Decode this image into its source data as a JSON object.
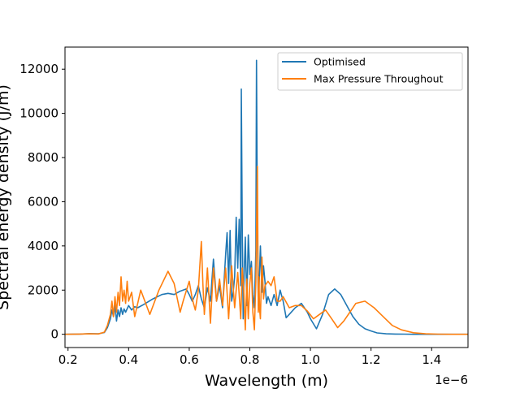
{
  "chart_data": {
    "type": "line",
    "title": "",
    "xlabel": "Wavelength (m)",
    "ylabel": "Spectral energy density (J/m)",
    "x_offset_label": "1e−6",
    "xlim": [
      0.19,
      1.52
    ],
    "ylim": [
      -600,
      13000
    ],
    "x_ticks": [
      0.2,
      0.4,
      0.6,
      0.8,
      1.0,
      1.2,
      1.4
    ],
    "x_tick_labels": [
      "0.2",
      "0.4",
      "0.6",
      "0.8",
      "1.0",
      "1.2",
      "1.4"
    ],
    "y_ticks": [
      0,
      2000,
      4000,
      6000,
      8000,
      10000,
      12000
    ],
    "y_tick_labels": [
      "0",
      "2000",
      "4000",
      "6000",
      "8000",
      "10000",
      "12000"
    ],
    "grid": false,
    "legend_position": "top-right",
    "series": [
      {
        "name": "Optimised",
        "color": "#1f77b4",
        "x": [
          0.19,
          0.24,
          0.27,
          0.3,
          0.32,
          0.33,
          0.34,
          0.345,
          0.35,
          0.355,
          0.36,
          0.365,
          0.37,
          0.375,
          0.38,
          0.385,
          0.39,
          0.4,
          0.41,
          0.42,
          0.43,
          0.45,
          0.48,
          0.51,
          0.53,
          0.55,
          0.57,
          0.59,
          0.6,
          0.61,
          0.62,
          0.63,
          0.64,
          0.65,
          0.66,
          0.67,
          0.68,
          0.69,
          0.7,
          0.71,
          0.72,
          0.725,
          0.73,
          0.735,
          0.74,
          0.745,
          0.75,
          0.755,
          0.76,
          0.765,
          0.77,
          0.772,
          0.775,
          0.778,
          0.78,
          0.785,
          0.79,
          0.795,
          0.8,
          0.805,
          0.81,
          0.815,
          0.82,
          0.822,
          0.825,
          0.828,
          0.83,
          0.835,
          0.84,
          0.845,
          0.85,
          0.855,
          0.86,
          0.87,
          0.88,
          0.89,
          0.9,
          0.91,
          0.92,
          0.93,
          0.95,
          0.97,
          0.99,
          1.0,
          1.02,
          1.04,
          1.06,
          1.08,
          1.1,
          1.12,
          1.14,
          1.16,
          1.18,
          1.2,
          1.22,
          1.25,
          1.28,
          1.31,
          1.35,
          1.4,
          1.45,
          1.52
        ],
        "y": [
          0,
          10,
          30,
          20,
          80,
          300,
          700,
          1100,
          800,
          1300,
          600,
          1100,
          800,
          1200,
          900,
          1150,
          1000,
          1300,
          1100,
          1250,
          1200,
          1350,
          1600,
          1800,
          1850,
          1800,
          1950,
          2050,
          1800,
          1500,
          1800,
          2200,
          1600,
          1200,
          2100,
          1500,
          3400,
          1500,
          2200,
          1200,
          3600,
          4600,
          2300,
          4700,
          1500,
          1900,
          2600,
          5300,
          3000,
          5200,
          2200,
          11100,
          4700,
          700,
          2100,
          4400,
          1300,
          4500,
          2700,
          3300,
          1800,
          1200,
          3800,
          12400,
          4700,
          1300,
          2000,
          4000,
          1900,
          3100,
          2400,
          1400,
          1700,
          1300,
          1800,
          1300,
          2000,
          1500,
          750,
          900,
          1200,
          1400,
          1000,
          700,
          250,
          900,
          1800,
          2050,
          1800,
          1300,
          800,
          450,
          250,
          150,
          60,
          20,
          10,
          5,
          0,
          0,
          0,
          0
        ]
      },
      {
        "name": "Max Pressure Throughout",
        "color": "#ff7f0e",
        "x": [
          0.19,
          0.24,
          0.27,
          0.3,
          0.32,
          0.33,
          0.34,
          0.345,
          0.35,
          0.355,
          0.36,
          0.365,
          0.37,
          0.375,
          0.38,
          0.385,
          0.39,
          0.395,
          0.4,
          0.41,
          0.42,
          0.44,
          0.47,
          0.5,
          0.53,
          0.55,
          0.57,
          0.58,
          0.6,
          0.61,
          0.62,
          0.63,
          0.64,
          0.645,
          0.65,
          0.66,
          0.67,
          0.68,
          0.69,
          0.7,
          0.71,
          0.72,
          0.73,
          0.74,
          0.75,
          0.76,
          0.77,
          0.775,
          0.78,
          0.785,
          0.79,
          0.795,
          0.8,
          0.805,
          0.81,
          0.815,
          0.82,
          0.825,
          0.828,
          0.83,
          0.832,
          0.835,
          0.84,
          0.845,
          0.85,
          0.86,
          0.87,
          0.88,
          0.89,
          0.9,
          0.91,
          0.93,
          0.95,
          0.97,
          0.99,
          1.01,
          1.03,
          1.05,
          1.07,
          1.09,
          1.11,
          1.13,
          1.15,
          1.18,
          1.21,
          1.24,
          1.27,
          1.3,
          1.34,
          1.38,
          1.42,
          1.47,
          1.52
        ],
        "y": [
          0,
          10,
          20,
          15,
          100,
          400,
          900,
          1500,
          800,
          1700,
          1000,
          1900,
          1300,
          2600,
          1500,
          2000,
          1400,
          2400,
          1500,
          1900,
          800,
          2000,
          900,
          2000,
          2850,
          2300,
          1000,
          1500,
          2400,
          1600,
          1100,
          2000,
          4200,
          2300,
          900,
          3000,
          500,
          3000,
          1500,
          2500,
          1300,
          3000,
          700,
          3100,
          1200,
          2800,
          700,
          3000,
          2000,
          200,
          2500,
          700,
          2300,
          3000,
          1000,
          200,
          2400,
          7600,
          1000,
          2600,
          1200,
          700,
          3500,
          1600,
          2200,
          2400,
          2200,
          2600,
          1500,
          1500,
          1700,
          1200,
          1300,
          1300,
          1050,
          700,
          900,
          1100,
          700,
          300,
          600,
          1000,
          1400,
          1500,
          1200,
          800,
          400,
          200,
          70,
          20,
          5,
          0,
          0
        ]
      }
    ]
  }
}
